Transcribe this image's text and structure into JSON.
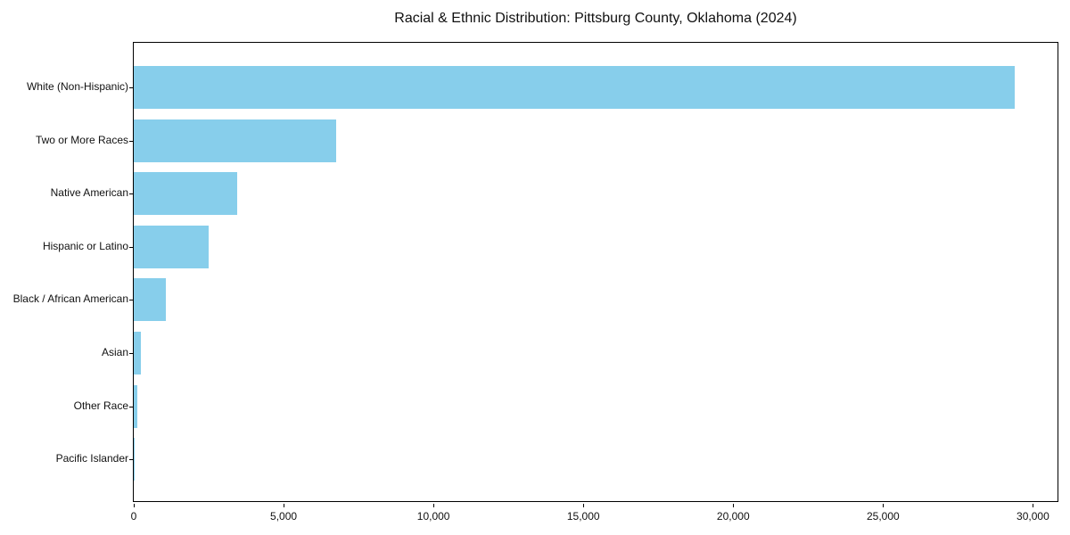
{
  "chart_data": {
    "type": "bar",
    "orientation": "horizontal",
    "title": "Racial & Ethnic Distribution: Pittsburg County, Oklahoma (2024)",
    "categories": [
      "White (Non-Hispanic)",
      "Two or More Races",
      "Native American",
      "Hispanic or Latino",
      "Black / African American",
      "Asian",
      "Other Race",
      "Pacific Islander"
    ],
    "values": [
      29400,
      6750,
      3450,
      2500,
      1070,
      250,
      130,
      30
    ],
    "xlabel": "",
    "ylabel": "",
    "xlim": [
      0,
      30880
    ],
    "x_ticks": [
      0,
      5000,
      10000,
      15000,
      20000,
      25000,
      30000
    ],
    "x_tick_labels": [
      "0",
      "5,000",
      "10,000",
      "15,000",
      "20,000",
      "25,000",
      "30,000"
    ],
    "bar_color": "#87CEEB",
    "grid": false,
    "legend": "none"
  }
}
